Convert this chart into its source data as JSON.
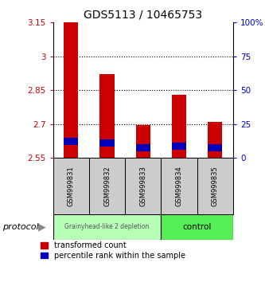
{
  "title": "GDS5113 / 10465753",
  "samples": [
    "GSM999831",
    "GSM999832",
    "GSM999833",
    "GSM999834",
    "GSM999835"
  ],
  "red_top": [
    3.15,
    2.92,
    2.695,
    2.83,
    2.71
  ],
  "red_bottom": [
    2.55,
    2.55,
    2.55,
    2.55,
    2.55
  ],
  "blue_top": [
    2.64,
    2.632,
    2.612,
    2.618,
    2.612
  ],
  "blue_bottom": [
    2.608,
    2.6,
    2.58,
    2.586,
    2.58
  ],
  "ylim_left": [
    2.55,
    3.15
  ],
  "yticks_left": [
    2.55,
    2.7,
    2.85,
    3.0,
    3.15
  ],
  "yticks_right": [
    0,
    25,
    50,
    75,
    100
  ],
  "ytick_labels_left": [
    "2.55",
    "2.7",
    "2.85",
    "3",
    "3.15"
  ],
  "ytick_labels_right": [
    "0",
    "25",
    "50",
    "75",
    "100%"
  ],
  "group1_samples": [
    0,
    1,
    2
  ],
  "group2_samples": [
    3,
    4
  ],
  "group1_label": "Grainyhead-like 2 depletion",
  "group2_label": "control",
  "group1_color": "#b8ffb8",
  "group2_color": "#55ee55",
  "protocol_label": "protocol",
  "bar_width": 0.4,
  "red_color": "#cc0000",
  "blue_color": "#0000bb",
  "legend_red": "transformed count",
  "legend_blue": "percentile rank within the sample",
  "left_tick_color": "#cc0000",
  "right_tick_color": "#0000cc",
  "title_fontsize": 10
}
